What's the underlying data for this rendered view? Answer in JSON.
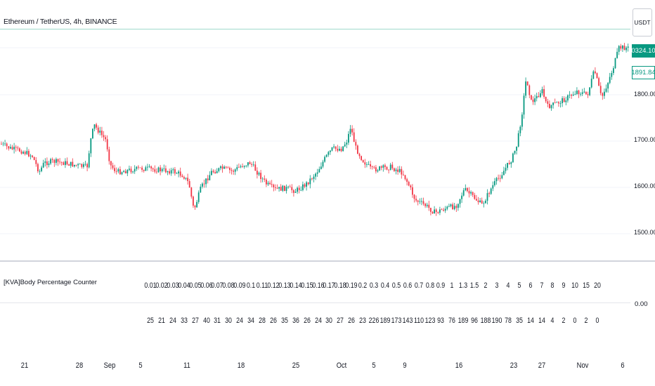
{
  "chart": {
    "symbol_title": "Ethereum / TetherUS, 4h, BINANCE",
    "currency_button": "USDT",
    "last_price": "0324.10",
    "prev_price": "1891.84",
    "price_ticks": [
      "1800.00",
      "1700.00",
      "1600.00",
      "1500.00"
    ],
    "time_ticks": [
      "21",
      "28",
      "Sep",
      "5",
      "11",
      "18",
      "25",
      "Oct",
      "5",
      "9",
      "16",
      "23",
      "27",
      "Nov",
      "6"
    ]
  },
  "indicator": {
    "title": "[KVA]Body Percentage Counter",
    "zero_label": "0.00",
    "thresholds": [
      "0.01",
      "0.02",
      "0.03",
      "0.04",
      "0.05",
      "0.06",
      "0.07",
      "0.08",
      "0.09",
      "0.1",
      "0.11",
      "0.12",
      "0.13",
      "0.14",
      "0.15",
      "0.16",
      "0.17",
      "0.18",
      "0.19",
      "0.2",
      "0.3",
      "0.4",
      "0.5",
      "0.6",
      "0.7",
      "0.8",
      "0.9",
      "1",
      "1.3",
      "1.5",
      "2",
      "3",
      "4",
      "5",
      "6",
      "7",
      "8",
      "9",
      "10",
      "15",
      "20"
    ],
    "counts": [
      "25",
      "21",
      "24",
      "33",
      "27",
      "40",
      "31",
      "30",
      "24",
      "34",
      "28",
      "26",
      "35",
      "36",
      "26",
      "24",
      "30",
      "27",
      "26",
      "23",
      "226",
      "189",
      "173",
      "143",
      "110",
      "123",
      "93",
      "76",
      "189",
      "96",
      "188",
      "190",
      "78",
      "35",
      "14",
      "14",
      "4",
      "2",
      "0",
      "2",
      "0"
    ]
  },
  "colors": {
    "up": "#089981",
    "down": "#f23645",
    "grid": "#f0f3fa",
    "text": "#131722"
  }
}
